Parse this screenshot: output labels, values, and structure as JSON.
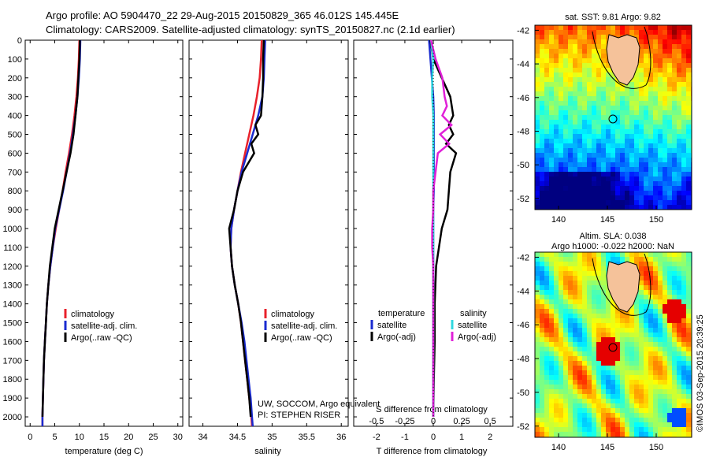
{
  "title": {
    "line1": "Argo profile: AO 5904470_22 29-Aug-2015 20150829_365 46.012S 145.445E",
    "line2": "Climatology: CARS2009. Satellite-adjusted climatology: synTS_20150827.nc (2.1d earlier)"
  },
  "colors": {
    "climatology": "#e8212b",
    "satellite": "#1a2bd0",
    "argo": "#000000",
    "sat_salinity": "#2fd8e0",
    "argo_salinity": "#e020d8",
    "land": "#f5c29a"
  },
  "depth_ticks": [
    "0",
    "100",
    "200",
    "300",
    "400",
    "500",
    "600",
    "700",
    "800",
    "900",
    "1000",
    "1100",
    "1200",
    "1300",
    "1400",
    "1500",
    "1600",
    "1700",
    "1800",
    "1900",
    "2000"
  ],
  "temp_panel": {
    "xlabel": "temperature (deg C)",
    "xticks": [
      "0",
      "5",
      "10",
      "15",
      "20",
      "25",
      "30"
    ],
    "legend": [
      "climatology",
      "satellite-adj. clim.",
      "Argo(..raw -QC)"
    ]
  },
  "sal_panel": {
    "xlabel": "salinity",
    "xticks": [
      "34",
      "34.5",
      "35",
      "35.5",
      "36"
    ],
    "legend": [
      "climatology",
      "satellite-adj. clim.",
      "Argo(..raw -QC)"
    ],
    "note1": "UW, SOCCOM, Argo equivalent",
    "note2": "PI: STEPHEN RISER"
  },
  "diff_panel": {
    "top_xlabel": "S difference from climatology",
    "top_xticks": [
      "-0.5",
      "-0.25",
      "0",
      "0.25",
      "0.5"
    ],
    "xlabel": "T difference from climatology",
    "xticks": [
      "-2",
      "-1",
      "0",
      "1",
      "2"
    ],
    "legend_t_title": "temperature",
    "legend_s_title": "salinity",
    "legend_t": [
      "satellite",
      "Argo(-adj)"
    ],
    "legend_s": [
      "satellite",
      "Argo(-adj)"
    ]
  },
  "map1": {
    "title": "sat. SST: 9.81  Argo: 9.82",
    "yticks": [
      "-42",
      "-44",
      "-46",
      "-48",
      "-50",
      "-52"
    ],
    "xticks": [
      "140",
      "145",
      "150"
    ]
  },
  "map2": {
    "title1": "Altim. SLA: 0.038",
    "title2": "Argo h1000: -0.022 h2000: NaN",
    "yticks": [
      "-42",
      "-44",
      "-46",
      "-48",
      "-50",
      "-52"
    ],
    "xticks": [
      "140",
      "145",
      "150"
    ]
  },
  "credit": "©IMOS 03-Sep-2015 20:39:25",
  "chart_data": [
    {
      "type": "line",
      "title": "",
      "xlabel": "temperature (deg C)",
      "ylabel": "",
      "xlim": [
        -1,
        31
      ],
      "ylim": [
        2050,
        0
      ],
      "series": [
        {
          "name": "climatology",
          "depth": [
            0,
            100,
            200,
            300,
            400,
            500,
            600,
            700,
            800,
            900,
            1000,
            1100,
            1200,
            1300,
            1400,
            1500,
            1600,
            1700,
            1800,
            1900,
            2000,
            2050
          ],
          "values": [
            10.0,
            9.9,
            9.7,
            9.4,
            9.0,
            8.5,
            7.9,
            7.2,
            6.6,
            5.9,
            5.2,
            4.6,
            4.1,
            3.7,
            3.4,
            3.2,
            3.0,
            2.8,
            2.7,
            2.6,
            2.5,
            2.5
          ]
        },
        {
          "name": "satellite-adj. clim.",
          "depth": [
            0,
            100,
            200,
            300,
            400,
            500,
            600,
            700,
            800,
            900,
            1000,
            1100,
            1200,
            1300,
            1400,
            1500,
            1600,
            1700,
            1800,
            1900,
            2000,
            2050
          ],
          "values": [
            10.2,
            10.1,
            9.9,
            9.6,
            9.2,
            8.7,
            8.1,
            7.4,
            6.7,
            5.9,
            5.1,
            4.6,
            4.1,
            3.7,
            3.4,
            3.2,
            3.0,
            2.8,
            2.7,
            2.6,
            2.5,
            2.5
          ]
        },
        {
          "name": "Argo(..raw -QC)",
          "depth": [
            0,
            100,
            200,
            300,
            400,
            500,
            600,
            700,
            800,
            900,
            1000,
            1100,
            1200,
            1300,
            1400,
            1500,
            1600,
            1700,
            1800,
            1900,
            2000
          ],
          "values": [
            10.1,
            10.0,
            9.8,
            9.6,
            9.2,
            8.8,
            8.2,
            7.4,
            6.6,
            5.8,
            5.0,
            4.5,
            4.0,
            3.7,
            3.4,
            3.2,
            3.0,
            2.8,
            2.7,
            2.6,
            2.5
          ]
        }
      ]
    },
    {
      "type": "line",
      "title": "",
      "xlabel": "salinity",
      "ylabel": "",
      "xlim": [
        33.8,
        36.1
      ],
      "ylim": [
        2050,
        0
      ],
      "series": [
        {
          "name": "climatology",
          "depth": [
            0,
            100,
            200,
            300,
            400,
            500,
            600,
            700,
            800,
            900,
            1000,
            1100,
            1200,
            1300,
            1400,
            1500,
            1600,
            1700,
            1800,
            1900,
            2000,
            2050
          ],
          "values": [
            34.85,
            34.84,
            34.82,
            34.78,
            34.73,
            34.67,
            34.61,
            34.55,
            34.5,
            34.45,
            34.41,
            34.4,
            34.42,
            34.46,
            34.51,
            34.55,
            34.58,
            34.61,
            34.64,
            34.67,
            34.7,
            34.71
          ]
        },
        {
          "name": "satellite-adj. clim.",
          "depth": [
            0,
            100,
            200,
            300,
            400,
            500,
            600,
            700,
            800,
            900,
            1000,
            1100,
            1200,
            1300,
            1400,
            1500,
            1600,
            1700,
            1800,
            1900,
            2000,
            2050
          ],
          "values": [
            34.9,
            34.89,
            34.88,
            34.86,
            34.8,
            34.72,
            34.64,
            34.56,
            34.5,
            34.45,
            34.41,
            34.4,
            34.42,
            34.46,
            34.51,
            34.56,
            34.6,
            34.63,
            34.66,
            34.69,
            34.71,
            34.72
          ]
        },
        {
          "name": "Argo(..raw -QC)",
          "depth": [
            0,
            100,
            200,
            300,
            400,
            450,
            500,
            550,
            600,
            700,
            800,
            900,
            1000,
            1100,
            1200,
            1300,
            1400,
            1500,
            1600,
            1700,
            1800,
            1900,
            2000
          ],
          "values": [
            34.88,
            34.87,
            34.87,
            34.86,
            34.84,
            34.76,
            34.8,
            34.7,
            34.74,
            34.58,
            34.5,
            34.45,
            34.38,
            34.4,
            34.42,
            34.46,
            34.51,
            34.55,
            34.58,
            34.61,
            34.64,
            34.67,
            34.69
          ]
        }
      ]
    },
    {
      "type": "line",
      "title": "",
      "xlabel": "T difference from climatology",
      "ylabel": "",
      "xlim": [
        -2.8,
        2.8
      ],
      "ylim": [
        2050,
        0
      ],
      "series": [
        {
          "name": "temperature satellite",
          "depth": [
            0,
            100,
            200,
            300,
            400,
            500,
            600,
            700,
            800,
            900,
            1000,
            1200,
            1400,
            1600,
            1800,
            2000
          ],
          "values": [
            -0.15,
            -0.1,
            -0.05,
            0.0,
            0.02,
            0.02,
            0.02,
            0.02,
            0.02,
            0.0,
            0.0,
            0.0,
            0.0,
            0.0,
            0.0,
            0.0
          ]
        },
        {
          "name": "temperature Argo(-adj)",
          "depth": [
            0,
            100,
            200,
            300,
            400,
            450,
            500,
            550,
            600,
            700,
            800,
            900,
            1000,
            1100,
            1200,
            1400,
            1600,
            1800,
            2000
          ],
          "values": [
            -0.1,
            0.0,
            0.3,
            0.6,
            0.7,
            0.55,
            0.7,
            0.45,
            0.8,
            0.6,
            0.55,
            0.5,
            0.3,
            0.2,
            0.1,
            0.05,
            0.05,
            0.02,
            0.0
          ]
        },
        {
          "name": "salinity satellite",
          "depth": [
            0,
            100,
            200,
            300,
            400,
            600,
            800,
            1000,
            1200,
            1400,
            1600,
            1800,
            2000
          ],
          "values": [
            -0.02,
            0.0,
            -0.01,
            -0.01,
            0.0,
            0.0,
            0.0,
            0.0,
            0.0,
            0.0,
            0.0,
            0.0,
            0.0
          ]
        },
        {
          "name": "salinity Argo(-adj)",
          "depth": [
            0,
            100,
            200,
            300,
            350,
            400,
            450,
            500,
            550,
            600,
            700,
            800,
            900,
            1000,
            1100,
            1200,
            1400,
            1600,
            1800,
            2000
          ],
          "values": [
            -0.02,
            0.02,
            0.08,
            0.1,
            0.12,
            0.08,
            0.16,
            0.06,
            0.14,
            0.04,
            0.02,
            0.0,
            0.0,
            -0.01,
            -0.01,
            0.0,
            0.0,
            0.0,
            0.0,
            0.0
          ]
        }
      ]
    }
  ]
}
